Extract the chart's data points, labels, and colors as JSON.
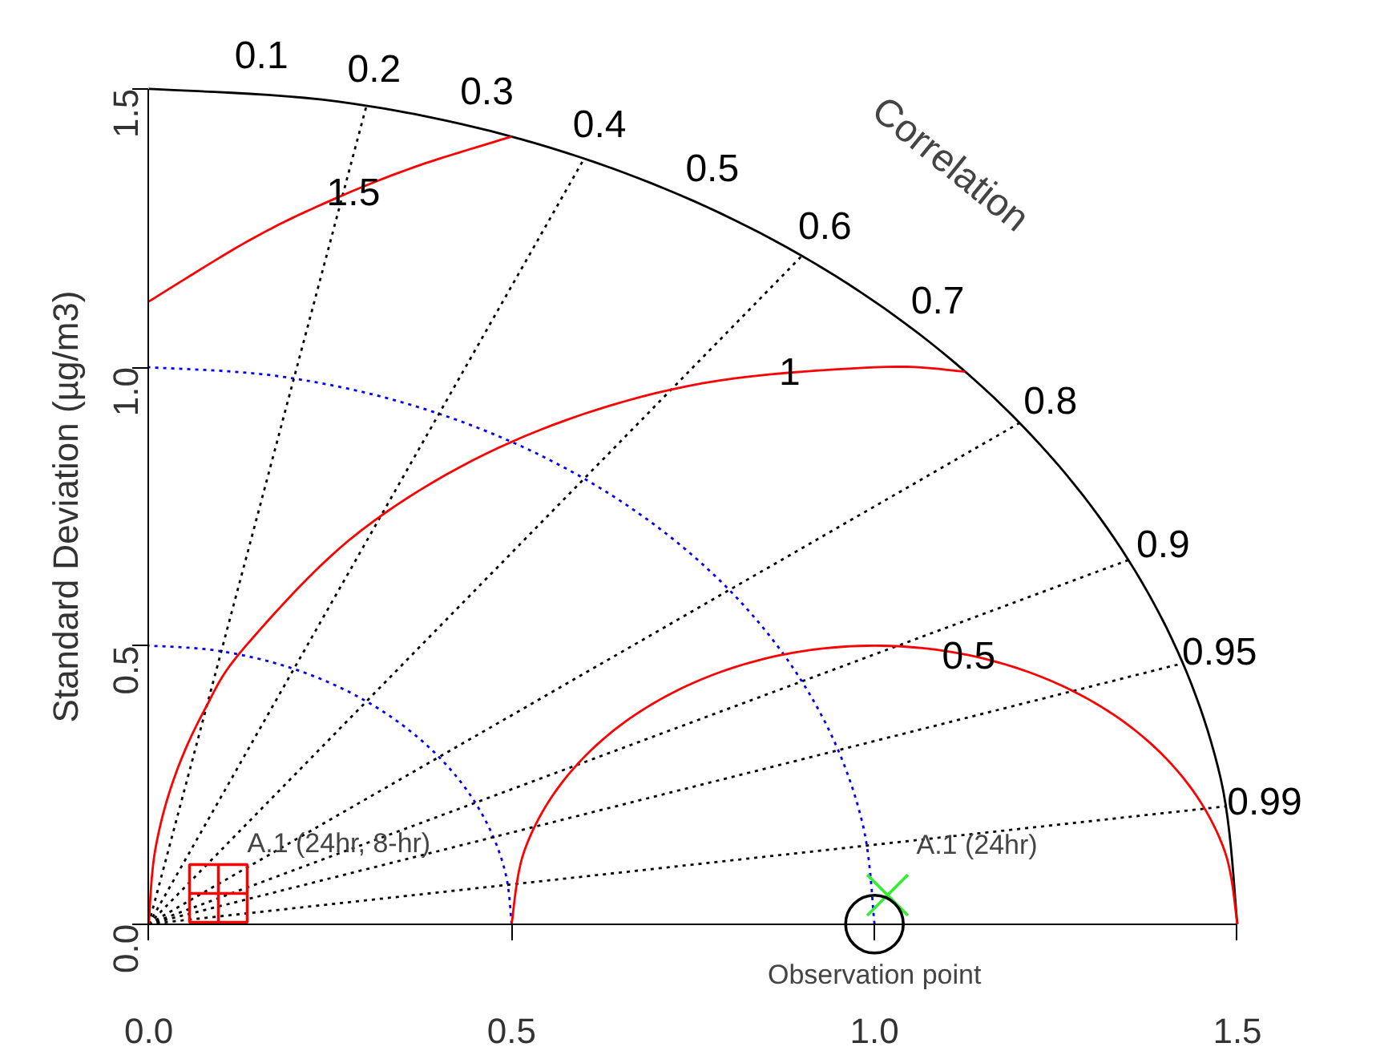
{
  "chart_data": {
    "type": "scatter",
    "ylabel": "Standard Deviation (µg/m3)",
    "xlim": [
      0,
      1.5
    ],
    "ylim": [
      0,
      1.5
    ],
    "xticks": [
      {
        "value": 0,
        "label": "0.0"
      },
      {
        "value": 0.5,
        "label": "0.5"
      },
      {
        "value": 1,
        "label": "1.0"
      },
      {
        "value": 1.5,
        "label": "1.5"
      }
    ],
    "yticks": [
      {
        "value": 0,
        "label": "0.0"
      },
      {
        "value": 0.5,
        "label": "0.5"
      },
      {
        "value": 1,
        "label": "1.0"
      },
      {
        "value": 1.5,
        "label": "1.5"
      }
    ],
    "series": [
      {
        "type": "line",
        "color": "#000000",
        "line_style": "solid",
        "x": [
          1.5,
          1.4772,
          1.4095,
          1.299,
          1.1491,
          0.9642,
          0.75,
          0.513,
          0.2605,
          0
        ],
        "values": [
          0,
          0.2605,
          0.513,
          0.75,
          0.9642,
          1.1491,
          1.299,
          1.4095,
          1.4772,
          1.5
        ]
      },
      {
        "type": "line",
        "color": "#0000ff",
        "line_style": "dotted",
        "x": [
          1,
          0.9848,
          0.9397,
          0.866,
          0.766,
          0.6428,
          0.5,
          0.342,
          0.1736,
          0
        ],
        "values": [
          0,
          0.1736,
          0.342,
          0.5,
          0.6428,
          0.766,
          0.866,
          0.9397,
          0.9848,
          1
        ]
      },
      {
        "type": "line",
        "color": "#0000ff",
        "line_style": "dotted",
        "x": [
          0.5,
          0.4924,
          0.4698,
          0.433,
          0.383,
          0.3214,
          0.25,
          0.171,
          0.0868,
          0
        ],
        "values": [
          0,
          0.0868,
          0.171,
          0.25,
          0.3214,
          0.383,
          0.433,
          0.4698,
          0.4924,
          0.5
        ]
      },
      {
        "type": "line",
        "color": "#000000",
        "line_style": "dotted",
        "x": [
          0,
          0.3
        ],
        "values": [
          0,
          1.4697
        ]
      },
      {
        "type": "line",
        "color": "#000000",
        "line_style": "dotted",
        "x": [
          0,
          0.6
        ],
        "values": [
          0,
          1.3748
        ]
      },
      {
        "type": "line",
        "color": "#000000",
        "line_style": "dotted",
        "x": [
          0,
          0.9
        ],
        "values": [
          0,
          1.2
        ]
      },
      {
        "type": "line",
        "color": "#000000",
        "line_style": "dotted",
        "x": [
          0,
          1.2
        ],
        "values": [
          0,
          0.9
        ]
      },
      {
        "type": "line",
        "color": "#000000",
        "line_style": "dotted",
        "x": [
          0,
          1.35
        ],
        "values": [
          0,
          0.6538
        ]
      },
      {
        "type": "line",
        "color": "#000000",
        "line_style": "dotted",
        "x": [
          0,
          1.425
        ],
        "values": [
          0,
          0.4684
        ]
      },
      {
        "type": "line",
        "color": "#000000",
        "line_style": "dotted",
        "x": [
          0,
          1.485
        ],
        "values": [
          0,
          0.2116
        ]
      },
      {
        "type": "line",
        "color": "#ff0000",
        "line_style": "solid",
        "x": [
          1.5,
          1.483,
          1.433,
          1.3536,
          1.25,
          1.1294,
          1,
          0.8706,
          0.75,
          0.6464,
          0.567,
          0.517,
          0.5
        ],
        "values": [
          0,
          0.1294,
          0.25,
          0.3536,
          0.433,
          0.483,
          0.5,
          0.483,
          0.433,
          0.3536,
          0.25,
          0.1294,
          0
        ]
      },
      {
        "type": "line",
        "color": "#ff0000",
        "line_style": "solid",
        "x": [
          1.125,
          1,
          0.7412,
          0.5,
          0.2929,
          0.134,
          0.0761,
          0.0341,
          0.0086,
          0
        ],
        "values": [
          0.9922,
          1,
          0.9659,
          0.866,
          0.7071,
          0.5,
          0.3827,
          0.2588,
          0.1305,
          0
        ]
      },
      {
        "type": "line",
        "color": "#ff0000",
        "line_style": "solid",
        "x": [
          0.5,
          0.3661,
          0.25,
          0.1396,
          0
        ],
        "values": [
          1.4142,
          1.3595,
          1.299,
          1.2287,
          1.118
        ]
      },
      {
        "name": "A.1 (24hr, 8-hr)",
        "color": "#ff0000",
        "marker": "square",
        "x": [
          0.096
        ],
        "values": [
          0.055
        ]
      },
      {
        "name": "A.1 (24hr)",
        "color": "#33ee33",
        "marker": "cross",
        "x": [
          1.018
        ],
        "values": [
          0.052
        ]
      },
      {
        "name": "Observation point",
        "color": "#000000",
        "marker": "circle",
        "x": [
          1.0
        ],
        "values": [
          0.0
        ]
      }
    ],
    "annotations": [
      {
        "text": "0.1",
        "x": 0.15,
        "y": 1.4925
      },
      {
        "text": "0.2",
        "x": 0.3,
        "y": 1.4697
      },
      {
        "text": "0.3",
        "x": 0.45,
        "y": 1.4309
      },
      {
        "text": "0.4",
        "x": 0.6,
        "y": 1.3748
      },
      {
        "text": "0.5",
        "x": 0.75,
        "y": 1.299
      },
      {
        "text": "0.6",
        "x": 0.9,
        "y": 1.2
      },
      {
        "text": "0.7",
        "x": 1.05,
        "y": 1.0712
      },
      {
        "text": "0.8",
        "x": 1.2,
        "y": 0.9
      },
      {
        "text": "0.9",
        "x": 1.35,
        "y": 0.6538
      },
      {
        "text": "0.95",
        "x": 1.425,
        "y": 0.4684
      },
      {
        "text": "0.99",
        "x": 1.485,
        "y": 0.2116
      },
      "Correlation",
      {
        "text": "1.5",
        "x": 0.282,
        "y": 1.315
      },
      {
        "text": "1",
        "x": 0.883,
        "y": 0.993
      },
      {
        "text": "0.5",
        "x": 1.13,
        "y": 0.483
      }
    ]
  }
}
